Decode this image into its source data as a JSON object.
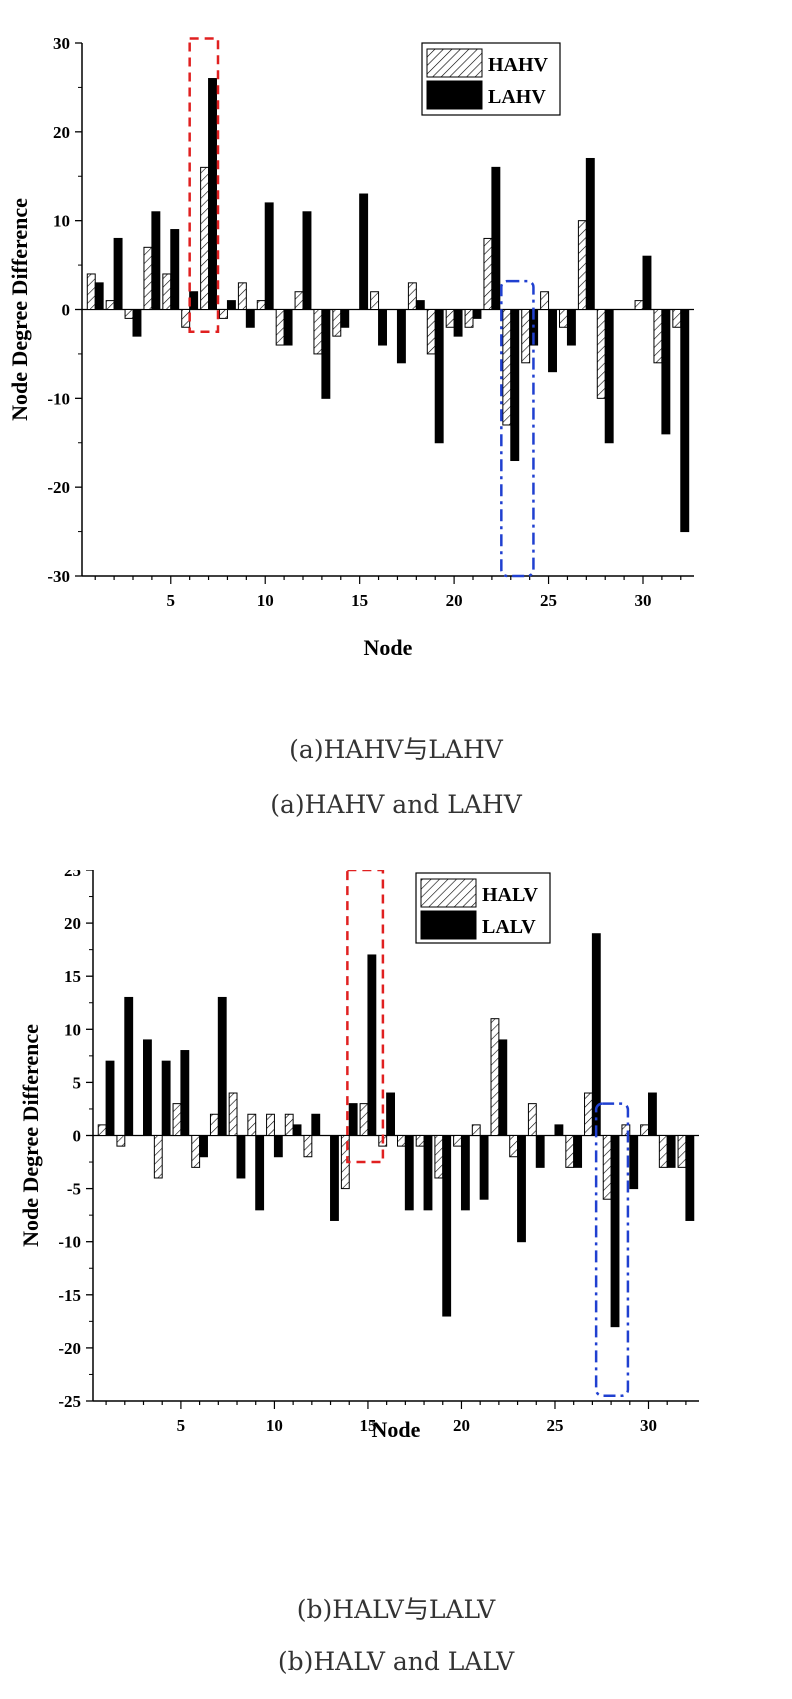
{
  "chart_data": [
    {
      "type": "bar",
      "xlabel": "Node",
      "ylabel": "Node Degree Difference",
      "ylim": [
        -30,
        30
      ],
      "yticks": [
        -30,
        -20,
        -10,
        0,
        10,
        20,
        30
      ],
      "xticks": [
        5,
        10,
        15,
        20,
        25,
        30
      ],
      "legend_position": "top-right",
      "categories": [
        1,
        2,
        3,
        4,
        5,
        6,
        7,
        8,
        9,
        10,
        11,
        12,
        13,
        14,
        15,
        16,
        17,
        18,
        19,
        20,
        21,
        22,
        23,
        24,
        25,
        26,
        27,
        28,
        29,
        30,
        31,
        32
      ],
      "series": [
        {
          "name": "HAHV",
          "pattern": "hatched",
          "values": [
            4,
            1,
            -1,
            7,
            4,
            -2,
            16,
            -1,
            3,
            1,
            -4,
            2,
            -5,
            -3,
            0,
            2,
            0,
            3,
            -5,
            -2,
            -2,
            8,
            -13,
            -6,
            2,
            -2,
            10,
            -10,
            0,
            1,
            -6,
            -2
          ]
        },
        {
          "name": "LAHV",
          "pattern": "solid",
          "values": [
            3,
            8,
            -3,
            11,
            9,
            2,
            26,
            1,
            -2,
            12,
            -4,
            11,
            -10,
            -2,
            13,
            -4,
            -6,
            1,
            -15,
            -3,
            -1,
            16,
            -17,
            -4,
            -7,
            -4,
            17,
            -15,
            0,
            6,
            -14,
            -25
          ]
        }
      ],
      "highlights": [
        {
          "style": "dashed",
          "color": "#e02020",
          "x_from": 6,
          "x_to": 7.5,
          "y_from": -2.5,
          "y_to": 30.5
        },
        {
          "style": "dash-dot",
          "color": "#2040d0",
          "x_from": 22.5,
          "x_to": 24.2,
          "y_from": -30,
          "y_to": 3.2
        }
      ],
      "caption_cn": "(a)HAHV与LAHV",
      "caption_en": "(a)HAHV and LAHV"
    },
    {
      "type": "bar",
      "xlabel": "Node",
      "ylabel": "Node Degree Difference",
      "ylim": [
        -25,
        25
      ],
      "yticks": [
        -25,
        -20,
        -15,
        -10,
        -5,
        0,
        5,
        10,
        15,
        20,
        25
      ],
      "xticks": [
        5,
        10,
        15,
        20,
        25,
        30
      ],
      "legend_position": "top-right",
      "categories": [
        1,
        2,
        3,
        4,
        5,
        6,
        7,
        8,
        9,
        10,
        11,
        12,
        13,
        14,
        15,
        16,
        17,
        18,
        19,
        20,
        21,
        22,
        23,
        24,
        25,
        26,
        27,
        28,
        29,
        30,
        31,
        32
      ],
      "series": [
        {
          "name": "HALV",
          "pattern": "hatched",
          "values": [
            1,
            -1,
            0,
            -4,
            3,
            -3,
            2,
            4,
            2,
            2,
            2,
            -2,
            0,
            -5,
            3,
            -1,
            -1,
            -1,
            -4,
            -1,
            1,
            11,
            -2,
            3,
            0,
            -3,
            4,
            -6,
            1,
            1,
            -3,
            -3
          ]
        },
        {
          "name": "LALV",
          "pattern": "solid",
          "values": [
            7,
            13,
            9,
            7,
            8,
            -2,
            13,
            -4,
            -7,
            -2,
            1,
            2,
            -8,
            3,
            17,
            4,
            -7,
            -7,
            -17,
            -7,
            -6,
            9,
            -10,
            -3,
            1,
            -3,
            19,
            -18,
            -5,
            4,
            -3,
            -8
          ]
        }
      ],
      "highlights": [
        {
          "style": "dashed",
          "color": "#e02020",
          "x_from": 13.9,
          "x_to": 15.8,
          "y_from": -2.5,
          "y_to": 25
        },
        {
          "style": "dash-dot",
          "color": "#2040d0",
          "x_from": 27.2,
          "x_to": 28.9,
          "y_from": -24.5,
          "y_to": 3
        }
      ],
      "caption_cn": "(b)HALV与LALV",
      "caption_en": "(b)HALV and LALV"
    }
  ]
}
